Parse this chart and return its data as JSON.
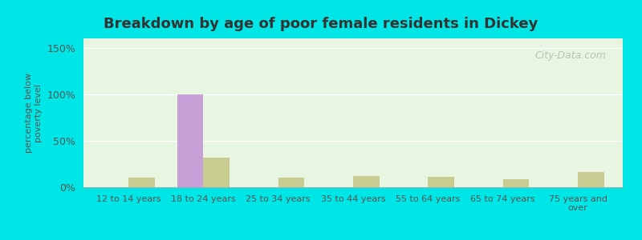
{
  "title": "Breakdown by age of poor female residents in Dickey",
  "categories": [
    "12 to 14 years",
    "18 to 24 years",
    "25 to 34 years",
    "35 to 44 years",
    "55 to 64 years",
    "65 to 74 years",
    "75 years and\nover"
  ],
  "dickey_values": [
    0,
    100,
    0,
    0,
    0,
    0,
    0
  ],
  "nd_values": [
    10,
    32,
    10,
    12,
    11,
    9,
    16
  ],
  "dickey_color": "#c8a0d8",
  "nd_color": "#c8cc90",
  "ylabel": "percentage below\npoverty level",
  "ylim": [
    0,
    160
  ],
  "yticks": [
    0,
    50,
    100,
    150
  ],
  "ytick_labels": [
    "0%",
    "50%",
    "100%",
    "150%"
  ],
  "bg_color_top": "#e8f5e0",
  "bg_color_bottom": "#d0f0e8",
  "outer_bg": "#00e5e5",
  "bar_width": 0.35,
  "watermark": "City-Data.com"
}
